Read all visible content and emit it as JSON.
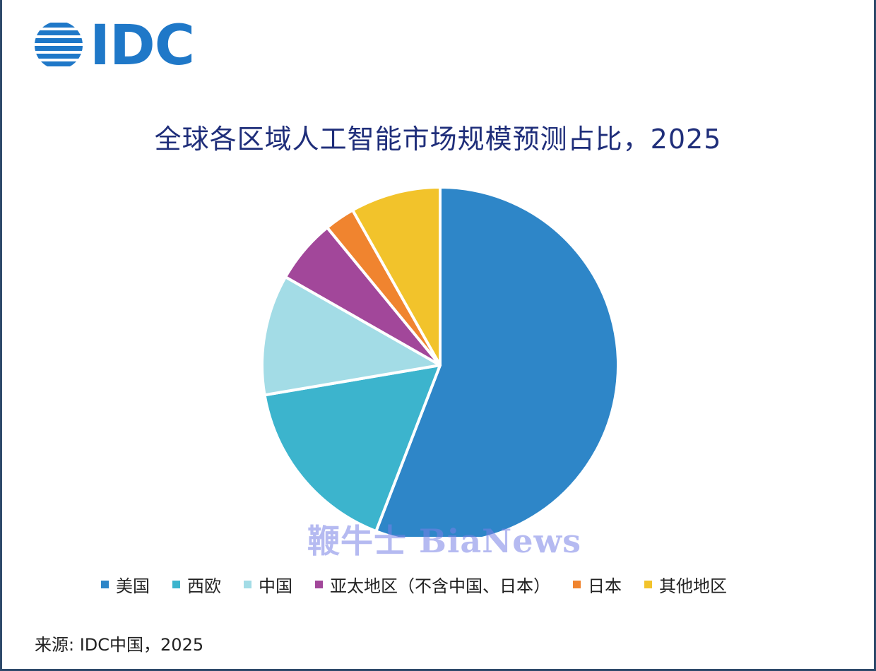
{
  "brand": {
    "logo_text": "IDC",
    "logo_color": "#1f78c8"
  },
  "watermark": "鞭牛士 BiaNews",
  "source": "来源: IDC中国，2025",
  "chart_data": {
    "type": "pie",
    "title": "全球各区域人工智能市场规模预测占比，2025",
    "legend_position": "bottom",
    "slices": [
      {
        "label": "美国",
        "value": 56.7,
        "color": "#2e86c8"
      },
      {
        "label": "西欧",
        "value": 16.7,
        "color": "#3cb4cd"
      },
      {
        "label": "中国",
        "value": 11.1,
        "color": "#a3dce6"
      },
      {
        "label": "亚太地区（不含中国、日本）",
        "value": 5.9,
        "color": "#a2479a"
      },
      {
        "label": "日本",
        "value": 2.8,
        "color": "#f0842f"
      },
      {
        "label": "其他地区",
        "value": 8.3,
        "color": "#f2c32b"
      }
    ]
  }
}
